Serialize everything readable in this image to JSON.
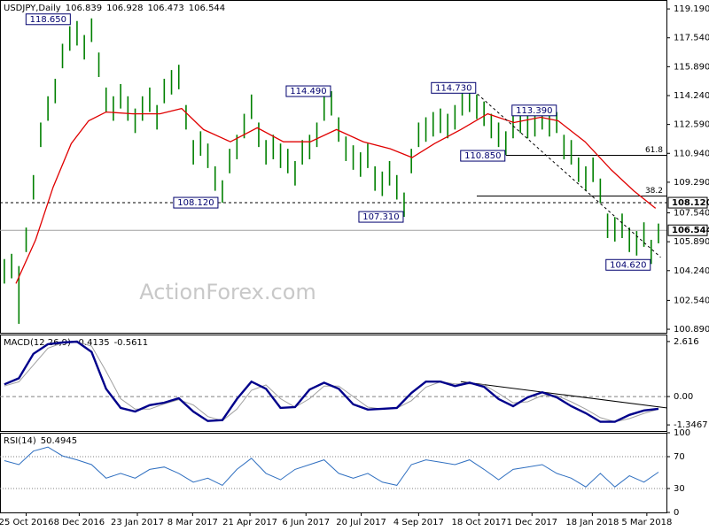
{
  "chart_data": [
    {
      "type": "ohlc",
      "title": "USDJPY,Daily",
      "ohlc": [
        106.839,
        106.928,
        106.473,
        106.544
      ],
      "watermark": "ActionForex.com",
      "xlim": [
        -0.6,
        91.1
      ],
      "xticks": [
        {
          "value": 3,
          "label": "25 Oct 2016"
        },
        {
          "value": 10.3,
          "label": "8 Dec 2016"
        },
        {
          "value": 18.3,
          "label": "23 Jan 2017"
        },
        {
          "value": 25.9,
          "label": "8 Mar 2017"
        },
        {
          "value": 33.8,
          "label": "21 Apr 2017"
        },
        {
          "value": 41.5,
          "label": "6 Jun 2017"
        },
        {
          "value": 49.1,
          "label": "20 Jul 2017"
        },
        {
          "value": 57,
          "label": "4 Sep 2017"
        },
        {
          "value": 65.3,
          "label": "18 Oct 2017"
        },
        {
          "value": 72.6,
          "label": "1 Dec 2017"
        },
        {
          "value": 80.9,
          "label": "18 Jan 2018"
        },
        {
          "value": 88.4,
          "label": "5 Mar 2018"
        }
      ],
      "ylim": [
        100.69,
        119.7
      ],
      "yticks": [
        {
          "value": 119.19,
          "label": "119.190"
        },
        {
          "value": 117.54,
          "label": "117.540"
        },
        {
          "value": 115.89,
          "label": "115.890"
        },
        {
          "value": 114.24,
          "label": "114.240"
        },
        {
          "value": 112.59,
          "label": "112.590"
        },
        {
          "value": 110.94,
          "label": "110.940"
        },
        {
          "value": 109.29,
          "label": "109.290"
        },
        {
          "value": 107.54,
          "label": "107.540"
        },
        {
          "value": 105.89,
          "label": "105.890"
        },
        {
          "value": 104.24,
          "label": "104.240"
        },
        {
          "value": 102.54,
          "label": "102.540"
        },
        {
          "value": 100.89,
          "label": "100.890"
        }
      ],
      "bars": {
        "color": "#008000",
        "high": [
          104.9,
          105.2,
          104.5,
          106.7,
          109.7,
          112.7,
          114.2,
          115.2,
          117.2,
          118.2,
          118.5,
          117.7,
          118.65,
          116.7,
          114.7,
          114.2,
          114.9,
          114.2,
          113.5,
          114.2,
          114.7,
          113.7,
          115.2,
          115.7,
          116,
          113.7,
          111.7,
          112.2,
          111.5,
          110.2,
          109.4,
          111.2,
          112,
          113.2,
          114.3,
          112.7,
          111.7,
          112,
          111.5,
          111.2,
          110.5,
          111.7,
          112,
          112.7,
          114.2,
          114.49,
          113,
          111.9,
          111.4,
          111,
          111.5,
          110.2,
          109.9,
          110.5,
          109.7,
          108.7,
          111.2,
          112.7,
          113,
          113.3,
          113.5,
          113.2,
          113.7,
          114.5,
          114.73,
          114.3,
          113.9,
          113.2,
          112.7,
          112.2,
          113.2,
          113.3,
          113.2,
          113.3,
          113.39,
          113.3,
          113.3,
          112,
          111.7,
          110.7,
          110.2,
          110.7,
          109.5,
          107.5,
          107.3,
          107.5,
          106.7,
          106.5,
          107,
          106,
          106.928
        ],
        "low": [
          103.5,
          103.8,
          101.2,
          105.3,
          108.3,
          111.3,
          112.8,
          113.8,
          115.8,
          116.8,
          117.1,
          116.3,
          117.3,
          115.3,
          113.3,
          112.8,
          113.5,
          112.8,
          112.1,
          112.8,
          113.3,
          112.3,
          113.8,
          114.3,
          114.6,
          112.3,
          110.3,
          110.8,
          110.1,
          108.8,
          108.12,
          109.8,
          110.6,
          111.8,
          112.9,
          111.3,
          110.3,
          110.6,
          110.1,
          109.8,
          109.1,
          110.3,
          110.6,
          111.3,
          112.8,
          113.1,
          111.6,
          110.5,
          110,
          109.6,
          110.1,
          108.8,
          108.5,
          109.1,
          108.3,
          107.31,
          109.8,
          111.3,
          111.6,
          111.9,
          112.1,
          111.8,
          112.3,
          113.1,
          113.3,
          112.9,
          112.5,
          111.8,
          111.3,
          110.85,
          111.8,
          112.1,
          111.8,
          111.9,
          112.3,
          111.9,
          112.1,
          110.6,
          110.3,
          109.3,
          108.8,
          109.3,
          108.1,
          106.1,
          105.9,
          106.1,
          105.3,
          105.1,
          105.6,
          104.62,
          105.8
        ]
      },
      "series": [
        {
          "color": "#e00000",
          "x": [
            1.6,
            4.3,
            6.7,
            9.2,
            11.6,
            14,
            17.7,
            21.4,
            24.4,
            27.4,
            31.1,
            34.8,
            38.4,
            42.1,
            45.7,
            49.4,
            53.1,
            56.1,
            59.2,
            62.8,
            66.5,
            70.1,
            73.8,
            76.2,
            79.9,
            83.5,
            86.6,
            89.6
          ],
          "values": [
            103.5,
            106,
            109,
            111.5,
            112.8,
            113.3,
            113.2,
            113.2,
            113.5,
            112.3,
            111.6,
            112.4,
            111.6,
            111.6,
            112.3,
            111.6,
            111.2,
            110.7,
            111.5,
            112.3,
            113.2,
            112.7,
            113,
            112.8,
            111.6,
            110,
            108.8,
            107.8
          ]
        }
      ],
      "annotations": [
        {
          "text": "118.650",
          "value": 118.65,
          "x": 12
        },
        {
          "text": "114.490",
          "value": 114.49,
          "x": 45
        },
        {
          "text": "114.730",
          "value": 114.73,
          "x": 64
        },
        {
          "text": "113.390",
          "value": 113.39,
          "x": 74
        },
        {
          "text": "110.850",
          "value": 110.85,
          "x": 69
        },
        {
          "text": "108.120",
          "value": 108.12,
          "x": 30
        },
        {
          "text": "107.310",
          "value": 107.31,
          "x": 55
        },
        {
          "text": "104.620",
          "value": 104.62,
          "x": 89
        }
      ],
      "levels": [
        {
          "value": 108.12,
          "label": "108.120",
          "style": "dashed"
        },
        {
          "value": 106.544,
          "label": "106.544",
          "style": "solid"
        }
      ],
      "fib": [
        {
          "label": "61.8",
          "value": 110.83,
          "from": 69
        },
        {
          "label": "38.2",
          "value": 108.5,
          "from": 65
        }
      ],
      "trendline": {
        "x": [
          64,
          90.3
        ],
        "values": [
          114.73,
          105.0
        ]
      }
    },
    {
      "type": "macd",
      "title": "MACD(12,26,9)",
      "readout": [
        -0.4135,
        -0.5611
      ],
      "xlim": [
        -0.6,
        91.1
      ],
      "ylim": [
        -1.637,
        2.948
      ],
      "yticks": [
        2.616,
        {
          "value": 0,
          "label": "0.00"
        },
        -1.3467
      ],
      "guides": [
        0
      ],
      "series": [
        {
          "color": "#00008b",
          "x": [
            0,
            2,
            4,
            6,
            8,
            10,
            12,
            14,
            16,
            18,
            20,
            22,
            24,
            26,
            28,
            30,
            32,
            34,
            36,
            38,
            40,
            42,
            44,
            46,
            48,
            50,
            52,
            54,
            56,
            58,
            60,
            62,
            64,
            66,
            68,
            70,
            72,
            74,
            76,
            78,
            80,
            82,
            84,
            86,
            88,
            90
          ],
          "values": [
            0.58,
            0.87,
            2.03,
            2.49,
            2.57,
            2.61,
            2.12,
            0.37,
            -0.54,
            -0.71,
            -0.41,
            -0.29,
            -0.08,
            -0.71,
            -1.16,
            -1.12,
            -0.12,
            0.71,
            0.37,
            -0.54,
            -0.5,
            0.33,
            0.66,
            0.37,
            -0.37,
            -0.62,
            -0.58,
            -0.54,
            0.17,
            0.71,
            0.71,
            0.5,
            0.66,
            0.46,
            -0.12,
            -0.46,
            -0.04,
            0.2,
            -0.04,
            -0.46,
            -0.79,
            -1.2,
            -1.2,
            -0.87,
            -0.66,
            -0.58
          ]
        },
        {
          "color": "#a0a0a0",
          "x": [
            0,
            2,
            4,
            6,
            8,
            10,
            12,
            14,
            16,
            18,
            20,
            22,
            24,
            26,
            28,
            30,
            32,
            34,
            36,
            38,
            40,
            42,
            44,
            46,
            48,
            50,
            52,
            54,
            56,
            58,
            60,
            62,
            64,
            66,
            68,
            70,
            72,
            74,
            76,
            78,
            80,
            82,
            84,
            86,
            88,
            90
          ],
          "values": [
            0.5,
            0.7,
            1.5,
            2.3,
            2.55,
            2.6,
            2.4,
            1.2,
            -0.1,
            -0.6,
            -0.6,
            -0.35,
            -0.15,
            -0.4,
            -0.95,
            -1.15,
            -0.6,
            0.3,
            0.55,
            -0.1,
            -0.5,
            -0.1,
            0.5,
            0.5,
            0,
            -0.5,
            -0.6,
            -0.55,
            -0.2,
            0.45,
            0.7,
            0.6,
            0.6,
            0.55,
            0.15,
            -0.3,
            -0.25,
            0.05,
            0.05,
            -0.25,
            -0.6,
            -1.0,
            -1.2,
            -1.05,
            -0.8,
            -0.6
          ]
        }
      ],
      "trendline": {
        "x": [
          62.8,
          91.1
        ],
        "values": [
          0.71,
          -0.54
        ]
      }
    },
    {
      "type": "rsi",
      "title": "RSI(14)",
      "readout": [
        50.4945
      ],
      "xlim": [
        -0.6,
        91.1
      ],
      "ylim": [
        0,
        100
      ],
      "yticks": [
        100,
        70,
        30,
        0
      ],
      "guides": [
        70,
        30
      ],
      "series": [
        {
          "color": "#2f6fc0",
          "x": [
            0,
            2,
            4,
            6,
            8,
            10,
            12,
            14,
            16,
            18,
            20,
            22,
            24,
            26,
            28,
            30,
            32,
            34,
            36,
            38,
            40,
            42,
            44,
            46,
            48,
            50,
            52,
            54,
            56,
            58,
            60,
            62,
            64,
            66,
            68,
            70,
            72,
            74,
            76,
            78,
            80,
            82,
            84,
            86,
            88,
            90
          ],
          "values": [
            65,
            60,
            77,
            82,
            71,
            66,
            60,
            43,
            49,
            43,
            54,
            57,
            49,
            38,
            43,
            34,
            54,
            68,
            49,
            41,
            54,
            60,
            66,
            49,
            43,
            49,
            38,
            34,
            60,
            66,
            63,
            60,
            66,
            54,
            41,
            54,
            57,
            60,
            49,
            43,
            32,
            49,
            32,
            46,
            38,
            50.5
          ]
        }
      ]
    }
  ]
}
